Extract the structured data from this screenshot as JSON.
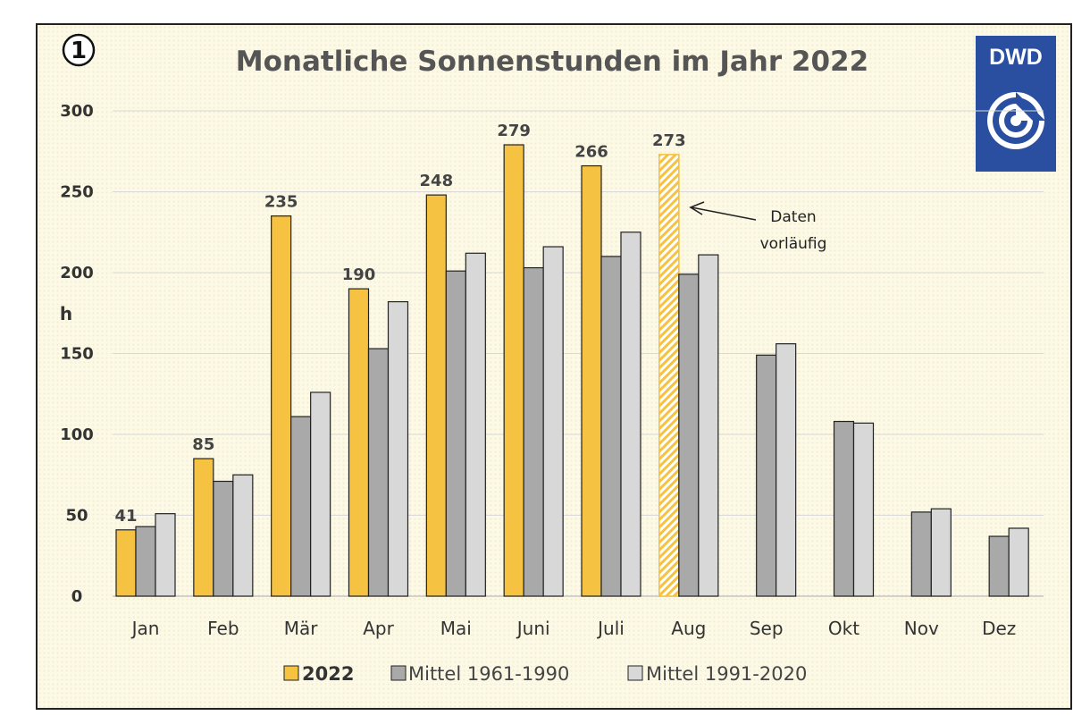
{
  "badge": {
    "number": "1"
  },
  "logo": {
    "text": "DWD",
    "color": "#2a4fa0"
  },
  "colors": {
    "series_2022": "#f5c242",
    "series_6190": "#a9a9a9",
    "series_9120": "#d8d8d8",
    "bar_border": "#222222",
    "grid": "#d9d9d9"
  },
  "annotation": {
    "line1": "Daten",
    "line2": "vorläufig"
  },
  "chart_data": {
    "type": "bar",
    "title": "Monatliche Sonnenstunden im Jahr 2022",
    "ylabel": "h",
    "xlabel": "",
    "ylim": [
      0,
      300
    ],
    "yticks": [
      "0",
      "50",
      "100",
      "150",
      "200",
      "250",
      "300"
    ],
    "grid": true,
    "legend_position": "bottom",
    "categories": [
      "Jan",
      "Feb",
      "Mär",
      "Apr",
      "Mai",
      "Juni",
      "Juli",
      "Aug",
      "Sep",
      "Okt",
      "Nov",
      "Dez"
    ],
    "series": [
      {
        "name": "2022",
        "values": [
          41,
          85,
          235,
          190,
          248,
          279,
          266,
          273,
          null,
          null,
          null,
          null
        ],
        "labels": [
          "41",
          "85",
          "235",
          "190",
          "248",
          "279",
          "266",
          "273",
          "",
          "",
          "",
          ""
        ],
        "hatched_index": 7
      },
      {
        "name": "Mittel 1961-1990",
        "values": [
          43,
          71,
          111,
          153,
          201,
          203,
          210,
          199,
          149,
          108,
          52,
          37
        ]
      },
      {
        "name": "Mittel 1991-2020",
        "values": [
          51,
          75,
          126,
          182,
          212,
          216,
          225,
          211,
          156,
          107,
          54,
          42
        ]
      }
    ]
  }
}
